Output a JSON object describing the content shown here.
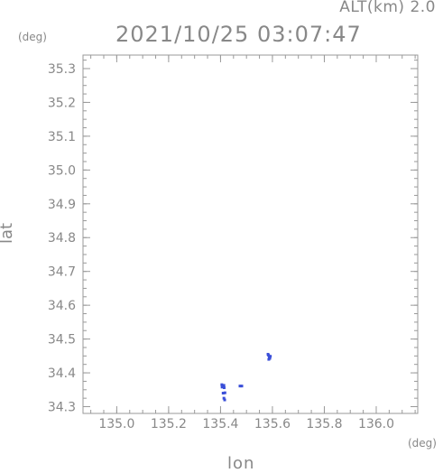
{
  "header": {
    "altitude_label": "ALT(km) 2.0",
    "y_unit": "(deg)",
    "x_unit": "(deg)"
  },
  "chart_data": {
    "type": "scatter",
    "title": "2021/10/25 03:07:47",
    "xlabel": "lon",
    "ylabel": "lat",
    "xlim": [
      134.87,
      136.16
    ],
    "ylim": [
      34.28,
      35.34
    ],
    "xticks": [
      "135.0",
      "135.2",
      "135.4",
      "135.6",
      "135.8",
      "136.0"
    ],
    "xtick_values": [
      135.0,
      135.2,
      135.4,
      135.6,
      135.8,
      136.0
    ],
    "yticks": [
      "34.3",
      "34.4",
      "34.5",
      "34.6",
      "34.7",
      "34.8",
      "34.9",
      "35.0",
      "35.1",
      "35.2",
      "35.3"
    ],
    "ytick_values": [
      34.3,
      34.4,
      34.5,
      34.6,
      34.7,
      34.8,
      34.9,
      35.0,
      35.1,
      35.2,
      35.3
    ],
    "point_color": "#3a4fd8",
    "points": [
      {
        "x": 135.585,
        "y": 34.452
      },
      {
        "x": 135.588,
        "y": 34.447
      },
      {
        "x": 135.59,
        "y": 34.443
      },
      {
        "x": 135.586,
        "y": 34.44
      },
      {
        "x": 135.583,
        "y": 34.455
      },
      {
        "x": 135.592,
        "y": 34.449
      },
      {
        "x": 135.405,
        "y": 34.365
      },
      {
        "x": 135.406,
        "y": 34.358
      },
      {
        "x": 135.413,
        "y": 34.363
      },
      {
        "x": 135.414,
        "y": 34.356
      },
      {
        "x": 135.41,
        "y": 34.34
      },
      {
        "x": 135.417,
        "y": 34.341
      },
      {
        "x": 135.413,
        "y": 34.325
      },
      {
        "x": 135.416,
        "y": 34.32
      },
      {
        "x": 135.475,
        "y": 34.361
      },
      {
        "x": 135.482,
        "y": 34.361
      }
    ]
  }
}
